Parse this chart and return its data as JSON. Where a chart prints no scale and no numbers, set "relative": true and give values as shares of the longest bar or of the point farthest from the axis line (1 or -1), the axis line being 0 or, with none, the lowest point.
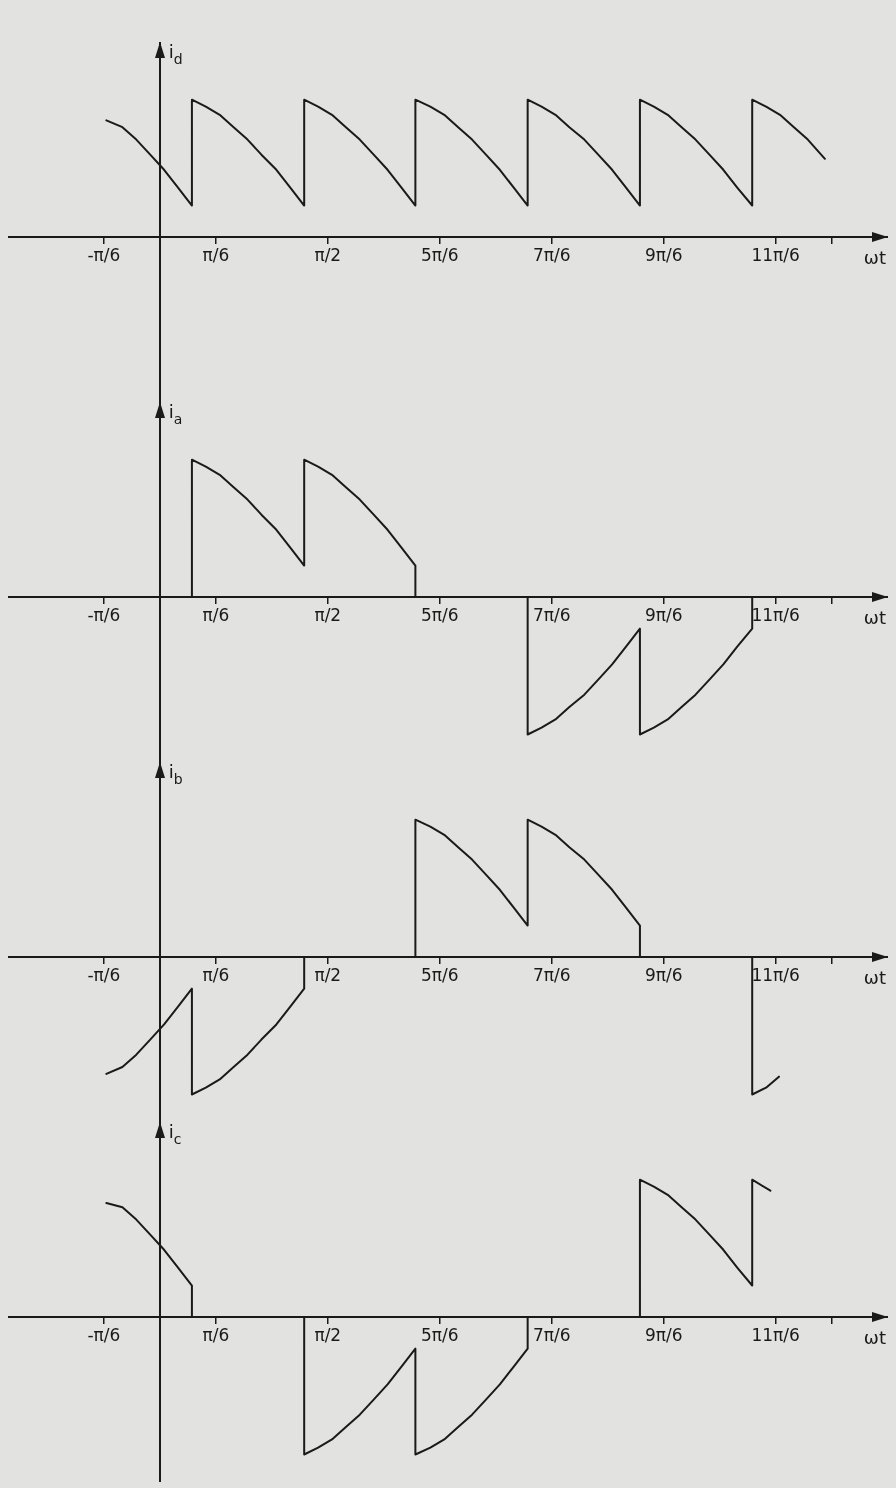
{
  "chart_data": [
    {
      "type": "line",
      "ylabel": "i$_{d}$",
      "xlabel": "ωt",
      "relative": true,
      "color": "#1a1a1a",
      "xlim": [
        -1.42,
        6.81
      ],
      "xticks": [
        {
          "value": -0.5236,
          "label": "-π/6"
        },
        {
          "value": 0.5236,
          "label": "π/6"
        },
        {
          "value": 1.5708,
          "label": "π/2"
        },
        {
          "value": 2.618,
          "label": "5π/6"
        },
        {
          "value": 3.6652,
          "label": "7π/6"
        },
        {
          "value": 4.7124,
          "label": "9π/6"
        },
        {
          "value": 5.7596,
          "label": "11π/6"
        },
        {
          "value": 6.2832,
          "label": null
        }
      ],
      "x": [
        -0.5,
        -0.35,
        -0.22,
        -0.09,
        0.04,
        0.17,
        0.3,
        0.3,
        0.43,
        0.56,
        0.69,
        0.82,
        0.95,
        1.09,
        1.22,
        1.35,
        1.35,
        1.48,
        1.61,
        1.74,
        1.87,
        2.0,
        2.13,
        2.26,
        2.39,
        2.39,
        2.53,
        2.66,
        2.79,
        2.92,
        3.05,
        3.18,
        3.31,
        3.44,
        3.44,
        3.57,
        3.7,
        3.83,
        3.97,
        4.1,
        4.23,
        4.36,
        4.49,
        4.49,
        4.62,
        4.75,
        4.88,
        5.01,
        5.14,
        5.27,
        5.4,
        5.54,
        5.54,
        5.67,
        5.8,
        5.93,
        6.06,
        6.22
      ],
      "values": [
        0.85,
        0.8,
        0.71,
        0.6,
        0.49,
        0.36,
        0.23,
        1,
        0.95,
        0.89,
        0.8,
        0.71,
        0.6,
        0.49,
        0.36,
        0.23,
        1,
        0.95,
        0.89,
        0.8,
        0.71,
        0.6,
        0.49,
        0.36,
        0.23,
        1,
        0.95,
        0.89,
        0.8,
        0.71,
        0.6,
        0.49,
        0.36,
        0.23,
        1,
        0.95,
        0.89,
        0.8,
        0.71,
        0.6,
        0.49,
        0.36,
        0.23,
        1,
        0.95,
        0.89,
        0.8,
        0.71,
        0.6,
        0.49,
        0.36,
        0.23,
        1,
        0.95,
        0.89,
        0.8,
        0.71,
        0.57
      ]
    },
    {
      "type": "line",
      "ylabel": "i$_{a}$",
      "xlabel": "ωt",
      "relative": true,
      "color": "#1a1a1a",
      "xlim": [
        -1.42,
        6.81
      ],
      "xticks": [
        {
          "value": -0.5236,
          "label": "-π/6"
        },
        {
          "value": 0.5236,
          "label": "π/6"
        },
        {
          "value": 1.5708,
          "label": "π/2"
        },
        {
          "value": 2.618,
          "label": "5π/6"
        },
        {
          "value": 3.6652,
          "label": "7π/6"
        },
        {
          "value": 4.7124,
          "label": "9π/6"
        },
        {
          "value": 5.7596,
          "label": "11π/6"
        },
        {
          "value": 6.2832,
          "label": null
        }
      ],
      "x": [
        0.3,
        0.3,
        0.43,
        0.56,
        0.69,
        0.82,
        0.95,
        1.09,
        1.22,
        1.35,
        1.35,
        1.48,
        1.61,
        1.74,
        1.87,
        2.0,
        2.13,
        2.26,
        2.39,
        2.39,
        3.44,
        3.44,
        3.57,
        3.7,
        3.83,
        3.97,
        4.1,
        4.23,
        4.36,
        4.49,
        4.49,
        4.62,
        4.75,
        4.88,
        5.01,
        5.14,
        5.27,
        5.4,
        5.54,
        5.54
      ],
      "values": [
        0,
        1,
        0.95,
        0.89,
        0.8,
        0.71,
        0.6,
        0.49,
        0.36,
        0.23,
        1,
        0.95,
        0.89,
        0.8,
        0.71,
        0.6,
        0.49,
        0.36,
        0.23,
        0,
        0,
        -1,
        -0.95,
        -0.89,
        -0.8,
        -0.71,
        -0.6,
        -0.49,
        -0.36,
        -0.23,
        -1,
        -0.95,
        -0.89,
        -0.8,
        -0.71,
        -0.6,
        -0.49,
        -0.36,
        -0.23,
        0
      ]
    },
    {
      "type": "line",
      "ylabel": "i$_{b}$",
      "xlabel": "ωt",
      "relative": true,
      "color": "#1a1a1a",
      "xlim": [
        -1.42,
        6.81
      ],
      "xticks": [
        {
          "value": -0.5236,
          "label": "-π/6"
        },
        {
          "value": 0.5236,
          "label": "π/6"
        },
        {
          "value": 1.5708,
          "label": "π/2"
        },
        {
          "value": 2.618,
          "label": "5π/6"
        },
        {
          "value": 3.6652,
          "label": "7π/6"
        },
        {
          "value": 4.7124,
          "label": "9π/6"
        },
        {
          "value": 5.7596,
          "label": "11π/6"
        },
        {
          "value": 6.2832,
          "label": null
        }
      ],
      "x": [
        -0.5,
        -0.35,
        -0.22,
        -0.09,
        0.04,
        0.17,
        0.3,
        0.3,
        0.43,
        0.56,
        0.69,
        0.82,
        0.95,
        1.09,
        1.22,
        1.35,
        1.35,
        2.39,
        2.39,
        2.53,
        2.66,
        2.79,
        2.92,
        3.05,
        3.18,
        3.31,
        3.44,
        3.44,
        3.57,
        3.7,
        3.83,
        3.97,
        4.1,
        4.23,
        4.36,
        4.49,
        4.49,
        5.54,
        5.54,
        5.67,
        5.79
      ],
      "values": [
        -0.85,
        -0.8,
        -0.71,
        -0.6,
        -0.49,
        -0.36,
        -0.23,
        -1,
        -0.95,
        -0.89,
        -0.8,
        -0.71,
        -0.6,
        -0.49,
        -0.36,
        -0.23,
        0,
        0,
        1,
        0.95,
        0.89,
        0.8,
        0.71,
        0.6,
        0.49,
        0.36,
        0.23,
        1,
        0.95,
        0.89,
        0.8,
        0.71,
        0.6,
        0.49,
        0.36,
        0.23,
        0,
        0,
        -1,
        -0.95,
        -0.87
      ]
    },
    {
      "type": "line",
      "ylabel": "i$_{c}$",
      "xlabel": "ωt",
      "relative": true,
      "color": "#1a1a1a",
      "xlim": [
        -1.42,
        6.81
      ],
      "xticks": [
        {
          "value": -0.5236,
          "label": "-π/6"
        },
        {
          "value": 0.5236,
          "label": "π/6"
        },
        {
          "value": 1.5708,
          "label": "π/2"
        },
        {
          "value": 2.618,
          "label": "5π/6"
        },
        {
          "value": 3.6652,
          "label": "7π/6"
        },
        {
          "value": 4.7124,
          "label": "9π/6"
        },
        {
          "value": 5.7596,
          "label": "11π/6"
        },
        {
          "value": 6.2832,
          "label": null
        }
      ],
      "x": [
        -0.5,
        -0.35,
        -0.22,
        -0.09,
        0.04,
        0.17,
        0.3,
        0.3,
        1.35,
        1.35,
        1.48,
        1.61,
        1.74,
        1.87,
        2.0,
        2.13,
        2.26,
        2.39,
        2.39,
        2.53,
        2.66,
        2.79,
        2.92,
        3.05,
        3.18,
        3.31,
        3.44,
        3.44,
        4.49,
        4.49,
        4.62,
        4.75,
        4.88,
        5.01,
        5.14,
        5.27,
        5.4,
        5.54,
        5.54,
        5.71
      ],
      "values": [
        0.83,
        0.8,
        0.71,
        0.6,
        0.49,
        0.36,
        0.23,
        0,
        0,
        -1,
        -0.95,
        -0.89,
        -0.8,
        -0.71,
        -0.6,
        -0.49,
        -0.36,
        -0.23,
        -1,
        -0.95,
        -0.89,
        -0.8,
        -0.71,
        -0.6,
        -0.49,
        -0.36,
        -0.23,
        0,
        0,
        1,
        0.95,
        0.89,
        0.8,
        0.71,
        0.6,
        0.49,
        0.36,
        0.23,
        1,
        0.92
      ]
    }
  ]
}
